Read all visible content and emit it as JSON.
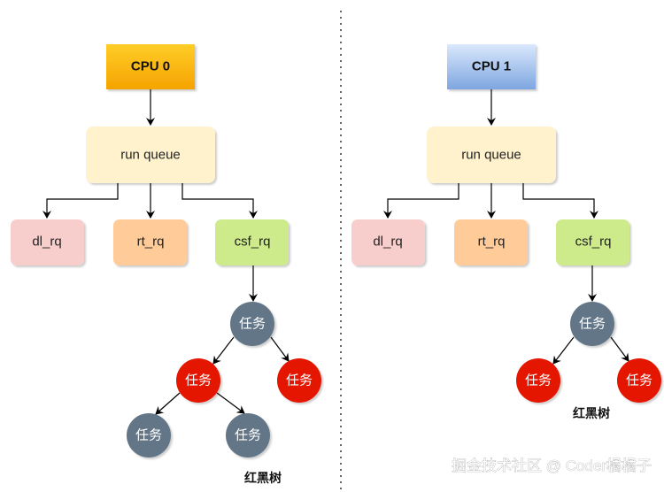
{
  "colors": {
    "cpu0": [
      "#ffcd28",
      "#f5a300"
    ],
    "cpu1": [
      "#dae8fc",
      "#7ea6e0"
    ],
    "run_queue": "#fff2cc",
    "dl_rq": "#f8cecc",
    "rt_rq": "#ffcc99",
    "csf_rq": "#cdeb8b",
    "black_node": "#647687",
    "red_node": "#e51400"
  },
  "left": {
    "cpu": "CPU 0",
    "run_queue": "run queue",
    "queues": [
      "dl_rq",
      "rt_rq",
      "csf_rq"
    ],
    "tree_nodes": [
      "任务",
      "任务",
      "任务",
      "任务",
      "任务"
    ],
    "tree_label": "红黑树"
  },
  "right": {
    "cpu": "CPU 1",
    "run_queue": "run queue",
    "queues": [
      "dl_rq",
      "rt_rq",
      "csf_rq"
    ],
    "tree_nodes": [
      "任务",
      "任务",
      "任务"
    ],
    "tree_label": "红黑树"
  },
  "watermark": "掘金技术社区 @ Coder橘橘子"
}
